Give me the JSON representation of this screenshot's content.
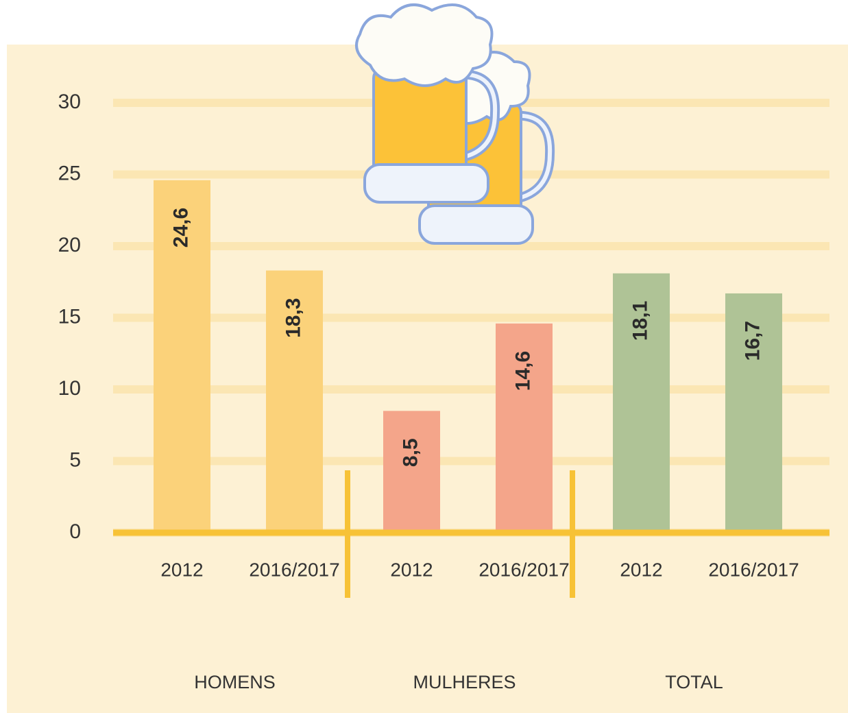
{
  "chart_data": {
    "type": "bar",
    "categories": [
      "2012",
      "2016/2017"
    ],
    "series": [
      {
        "name": "HOMENS",
        "color": "#fbd27a",
        "values": [
          24.6,
          18.3
        ],
        "value_labels": [
          "24,6",
          "18,3"
        ]
      },
      {
        "name": "MULHERES",
        "color": "#f4a58a",
        "values": [
          8.5,
          14.6
        ],
        "value_labels": [
          "8,5",
          "14,6"
        ]
      },
      {
        "name": "TOTAL",
        "color": "#afc396",
        "values": [
          18.1,
          16.7
        ],
        "value_labels": [
          "18,1",
          "16,7"
        ]
      }
    ],
    "ylim": [
      0,
      30
    ],
    "yticks": [
      0,
      5,
      10,
      15,
      20,
      25,
      30
    ],
    "grid": true
  }
}
